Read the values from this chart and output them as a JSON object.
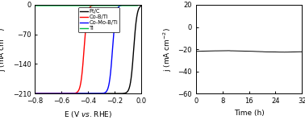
{
  "left_plot": {
    "xlabel": "E (V $\\it{vs}$. RHE)",
    "ylabel": "j (mA cm$^{-2}$)",
    "xlim": [
      -0.8,
      0.0
    ],
    "ylim": [
      -210,
      0
    ],
    "xticks": [
      -0.8,
      -0.6,
      -0.4,
      -0.2,
      0.0
    ],
    "yticks": [
      -210,
      -140,
      -70,
      0
    ],
    "curves": [
      {
        "label": "Pt/C",
        "color": "#000000",
        "onset": -0.055,
        "steepness": 80
      },
      {
        "label": "Co-B/Ti",
        "color": "#FF0000",
        "onset": -0.43,
        "steepness": 80
      },
      {
        "label": "Co-Mo-B/Ti",
        "color": "#0000FF",
        "onset": -0.215,
        "steepness": 80
      },
      {
        "label": "Ti",
        "color": "#00BB44",
        "onset": -0.02,
        "steepness": 300,
        "is_flat": true
      }
    ]
  },
  "right_plot": {
    "xlabel": "Time (h)",
    "ylabel": "j (mA cm$^{-2}$)",
    "xlim": [
      0,
      32
    ],
    "ylim": [
      -60,
      20
    ],
    "xticks": [
      0,
      8,
      16,
      24,
      32
    ],
    "yticks": [
      -60,
      -40,
      -20,
      0,
      20
    ],
    "line_value": -22,
    "line_color": "#000000"
  }
}
